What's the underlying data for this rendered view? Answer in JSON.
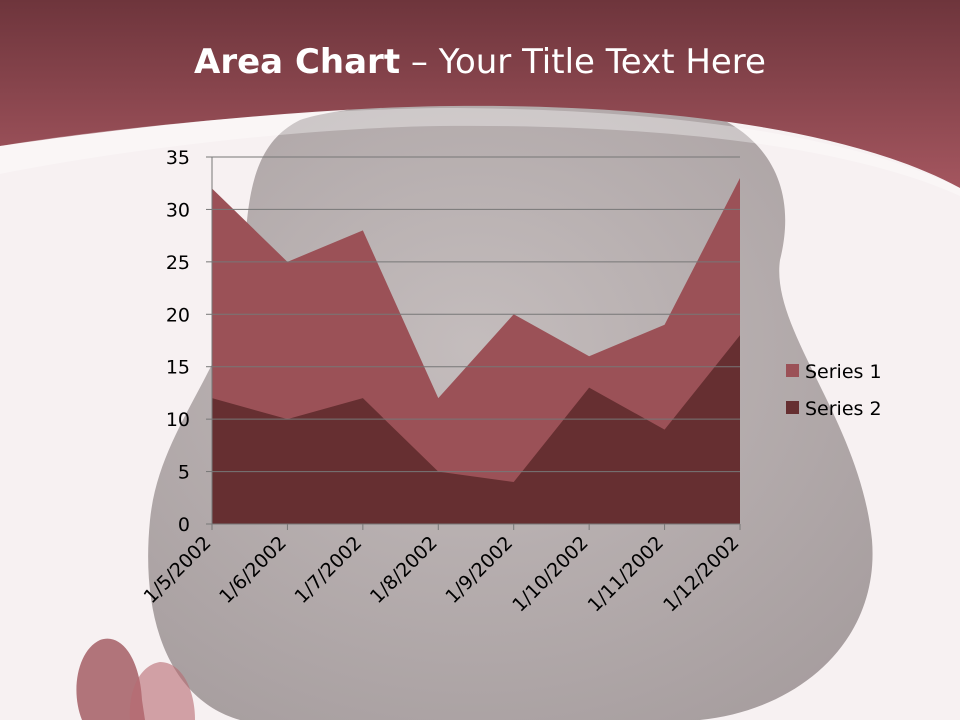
{
  "slide": {
    "title_bold": "Area Chart",
    "title_rest": " – Your Title Text Here"
  },
  "colors": {
    "header": "#9c5059",
    "background": "#f7f1f2",
    "series1": "#9b5157",
    "series2": "#662f31",
    "grid": "#777777",
    "text": "#000000"
  },
  "chart_data": {
    "type": "area",
    "title": "",
    "xlabel": "",
    "ylabel": "",
    "categories": [
      "1/5/2002",
      "1/6/2002",
      "1/7/2002",
      "1/8/2002",
      "1/9/2002",
      "1/10/2002",
      "1/11/2002",
      "1/12/2002"
    ],
    "series": [
      {
        "name": "Series 1",
        "values": [
          32,
          25,
          28,
          12,
          20,
          16,
          19,
          33
        ]
      },
      {
        "name": "Series 2",
        "values": [
          12,
          10,
          12,
          5,
          4,
          13,
          9,
          18
        ]
      }
    ],
    "ylim": [
      0,
      35
    ],
    "yticks": [
      0,
      5,
      10,
      15,
      20,
      25,
      30,
      35
    ],
    "grid": true,
    "legend_position": "right"
  }
}
